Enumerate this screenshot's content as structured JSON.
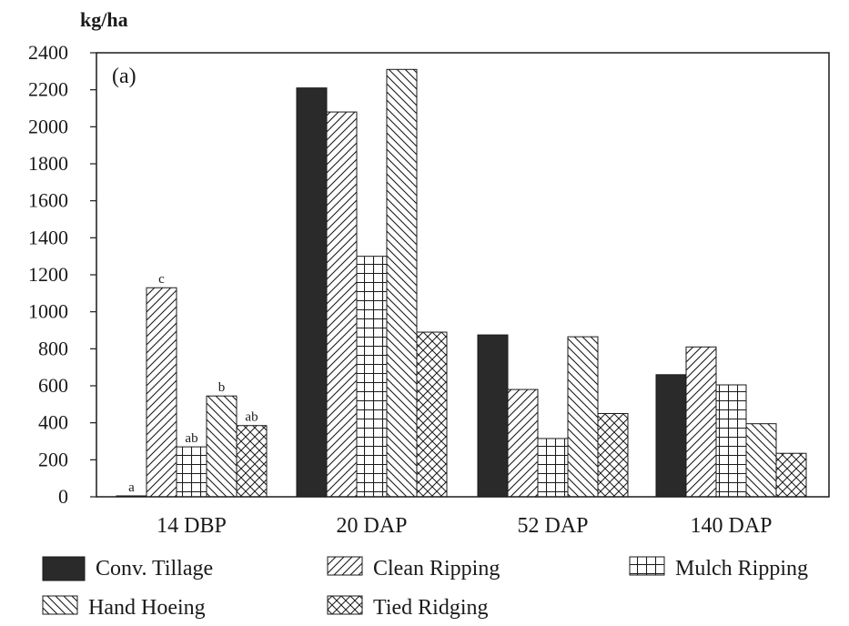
{
  "chart_data": {
    "type": "bar",
    "panel_label": "(a)",
    "ylabel": "kg/ha",
    "ylim": [
      0,
      2400
    ],
    "yticks": [
      "0",
      "200",
      "400",
      "600",
      "800",
      "1000",
      "1200",
      "1400",
      "1600",
      "1800",
      "2000",
      "2200",
      "2400"
    ],
    "categories": [
      "14 DBP",
      "20 DAP",
      "52 DAP",
      "140 DAP"
    ],
    "legend_position": "bottom",
    "grid": false,
    "series": [
      {
        "name": "Conv. Tillage",
        "pattern": "solid",
        "values": [
          5,
          2210,
          875,
          660
        ],
        "labels": [
          "a",
          "",
          "",
          ""
        ]
      },
      {
        "name": "Clean Ripping",
        "pattern": "diag-right",
        "values": [
          1130,
          2080,
          580,
          810
        ],
        "labels": [
          "c",
          "",
          "",
          ""
        ]
      },
      {
        "name": "Mulch Ripping",
        "pattern": "grid",
        "values": [
          270,
          1300,
          315,
          605
        ],
        "labels": [
          "ab",
          "",
          "",
          ""
        ]
      },
      {
        "name": "Hand Hoeing",
        "pattern": "diag-left",
        "values": [
          545,
          2310,
          865,
          395
        ],
        "labels": [
          "b",
          "",
          "",
          ""
        ]
      },
      {
        "name": "Tied Ridging",
        "pattern": "crosshatch",
        "values": [
          385,
          890,
          450,
          235
        ],
        "labels": [
          "ab",
          "",
          "",
          ""
        ]
      }
    ],
    "colors": {
      "ink": "#1a1a1a",
      "solid_fill": "#2a2a2a",
      "background": "#ffffff"
    }
  }
}
